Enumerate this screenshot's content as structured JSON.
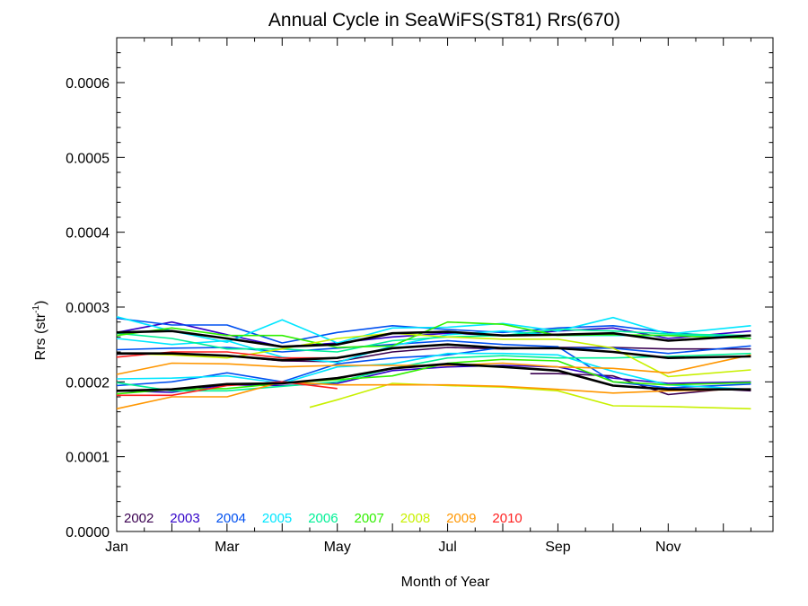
{
  "chart_data": {
    "type": "line",
    "title": "Annual Cycle in SeaWiFS(ST81) Rrs(670)",
    "xlabel": "Month of Year",
    "ylabel_main": "Rrs (str",
    "ylabel_sup": "-1",
    "ylabel_close": ")",
    "xlim": [
      1,
      12.9
    ],
    "ylim": [
      0,
      0.00066
    ],
    "x_ticks": [
      {
        "value": 1,
        "label": "Jan"
      },
      {
        "value": 3,
        "label": "Mar"
      },
      {
        "value": 5,
        "label": "May"
      },
      {
        "value": 7,
        "label": "Jul"
      },
      {
        "value": 9,
        "label": "Sep"
      },
      {
        "value": 11,
        "label": "Nov"
      }
    ],
    "y_ticks": [
      {
        "value": 0.0,
        "label": "0.0000"
      },
      {
        "value": 0.0001,
        "label": "0.0001"
      },
      {
        "value": 0.0002,
        "label": "0.0002"
      },
      {
        "value": 0.0003,
        "label": "0.0003"
      },
      {
        "value": 0.0004,
        "label": "0.0004"
      },
      {
        "value": 0.0005,
        "label": "0.0005"
      },
      {
        "value": 0.0006,
        "label": "0.0006"
      }
    ],
    "legend_position": "bottom-left, inside plot",
    "series": [
      {
        "name": "2002",
        "color": "#3a0050",
        "lines": [
          {
            "x": [
              1,
              2,
              3,
              4,
              5,
              6,
              7,
              8,
              9,
              10,
              11,
              12.5
            ],
            "y": [
              0.000237,
              0.000238,
              0.000235,
              0.000228,
              0.000227,
              0.00024,
              0.000246,
              0.000244,
              0.000246,
              0.000246,
              0.000244,
              0.000244
            ]
          },
          {
            "x": [
              8.5,
              9,
              10,
              11,
              12,
              12.5
            ],
            "y": [
              0.000211,
              0.000211,
              0.000208,
              0.000183,
              0.00019,
              0.000188
            ]
          }
        ]
      },
      {
        "name": "2003",
        "color": "#3000c8",
        "lines": [
          {
            "x": [
              1,
              2,
              3,
              4,
              5,
              6,
              7,
              8,
              9,
              10,
              11,
              12.5
            ],
            "y": [
              0.000266,
              0.00028,
              0.000263,
              0.000247,
              0.000252,
              0.00026,
              0.000265,
              0.000262,
              0.000268,
              0.000272,
              0.000258,
              0.000268
            ]
          },
          {
            "x": [
              1,
              2,
              3,
              4,
              5,
              6,
              7,
              8,
              9,
              10,
              11,
              12.5
            ],
            "y": [
              0.000188,
              0.000186,
              0.000196,
              0.000195,
              0.000198,
              0.000215,
              0.00022,
              0.000222,
              0.00022,
              0.000205,
              0.000198,
              0.0002
            ]
          }
        ]
      },
      {
        "name": "2004",
        "color": "#0050f0",
        "lines": [
          {
            "x": [
              1,
              2,
              3,
              4,
              5,
              6,
              7,
              8,
              9,
              10,
              11,
              12.5
            ],
            "y": [
              0.000285,
              0.000276,
              0.000276,
              0.000252,
              0.000266,
              0.000275,
              0.00027,
              0.000266,
              0.000272,
              0.000275,
              0.000266,
              0.000258
            ]
          },
          {
            "x": [
              1,
              2,
              3,
              4,
              5,
              6,
              7,
              8,
              9,
              10,
              11,
              12.5
            ],
            "y": [
              0.000195,
              0.0002,
              0.000212,
              0.0002,
              0.000224,
              0.000232,
              0.000236,
              0.000246,
              0.000245,
              0.000245,
              0.000238,
              0.000248
            ]
          },
          {
            "x": [
              1,
              2,
              3,
              4,
              5,
              6,
              7,
              8,
              9,
              10,
              11,
              12.5
            ],
            "y": [
              0.000243,
              0.000245,
              0.000246,
              0.00024,
              0.000245,
              0.00025,
              0.000255,
              0.00025,
              0.000247,
              0.0002,
              0.000192,
              0.000197
            ]
          }
        ]
      },
      {
        "name": "2005",
        "color": "#00e6ff",
        "lines": [
          {
            "x": [
              1,
              2,
              3,
              4,
              5,
              6,
              7,
              8,
              9,
              10,
              11,
              12.5
            ],
            "y": [
              0.000287,
              0.000268,
              0.000253,
              0.000283,
              0.000252,
              0.000272,
              0.000273,
              0.000278,
              0.000268,
              0.000286,
              0.000264,
              0.000275
            ]
          },
          {
            "x": [
              1,
              2,
              3,
              4,
              5,
              6,
              7,
              8,
              9,
              10,
              11,
              12.5
            ],
            "y": [
              0.000258,
              0.00025,
              0.000255,
              0.000233,
              0.000226,
              0.000248,
              0.000263,
              0.000268,
              0.000262,
              0.000262,
              0.000262,
              0.000262
            ]
          },
          {
            "x": [
              1,
              2,
              3,
              4,
              5,
              6,
              7,
              8,
              9,
              10,
              11,
              12.5
            ],
            "y": [
              0.000204,
              0.000205,
              0.000208,
              0.000198,
              0.00022,
              0.000224,
              0.000238,
              0.000238,
              0.000236,
              0.000214,
              0.000196,
              0.00019
            ]
          }
        ]
      },
      {
        "name": "2006",
        "color": "#00f096",
        "lines": [
          {
            "x": [
              1,
              2,
              3,
              4,
              5,
              6,
              7,
              8,
              9,
              10,
              11,
              12.5
            ],
            "y": [
              0.000199,
              0.000188,
              0.000188,
              0.000194,
              0.0002,
              0.000218,
              0.000232,
              0.000235,
              0.000232,
              0.000232,
              0.000234,
              0.000238
            ]
          },
          {
            "x": [
              1,
              2,
              3,
              4,
              5,
              6,
              7,
              8,
              9,
              10,
              11,
              12.5
            ],
            "y": [
              0.000265,
              0.000258,
              0.000244,
              0.000244,
              0.00024,
              0.000255,
              0.00026,
              0.000262,
              0.00027,
              0.000268,
              0.000264,
              0.000262
            ]
          }
        ]
      },
      {
        "name": "2007",
        "color": "#30f000",
        "lines": [
          {
            "x": [
              1,
              2,
              3,
              4,
              5,
              6,
              7,
              8,
              9,
              10,
              11,
              12.5
            ],
            "y": [
              0.000262,
              0.000272,
              0.000262,
              0.000262,
              0.000246,
              0.000248,
              0.00028,
              0.000277,
              0.000262,
              0.000263,
              0.000262,
              0.000258
            ]
          },
          {
            "x": [
              1,
              2,
              3,
              4,
              5,
              6,
              7,
              8,
              9,
              10,
              11,
              12.5
            ],
            "y": [
              0.000184,
              0.00019,
              0.000191,
              0.000198,
              0.000203,
              0.000208,
              0.000225,
              0.00023,
              0.000228,
              0.0002,
              0.000196,
              0.000199
            ]
          }
        ]
      },
      {
        "name": "2008",
        "color": "#c8f000",
        "lines": [
          {
            "x": [
              4.5,
              5,
              6,
              7,
              8,
              9,
              10,
              11,
              12.5
            ],
            "y": [
              0.000166,
              0.000176,
              0.000198,
              0.000195,
              0.000193,
              0.000188,
              0.000168,
              0.000167,
              0.000164
            ]
          },
          {
            "x": [
              1,
              2,
              3,
              4,
              5,
              6,
              7,
              8,
              9,
              10,
              11,
              12.5
            ],
            "y": [
              0.000238,
              0.000236,
              0.000232,
              0.000244,
              0.000258,
              0.000265,
              0.00026,
              0.000257,
              0.000257,
              0.000245,
              0.000207,
              0.000216
            ]
          }
        ]
      },
      {
        "name": "2009",
        "color": "#ff9600",
        "lines": [
          {
            "x": [
              1,
              2,
              3,
              4,
              5,
              6,
              7,
              8,
              9,
              10,
              11,
              12.5
            ],
            "y": [
              0.000164,
              0.00018,
              0.00018,
              0.0002,
              0.000196,
              0.000196,
              0.000196,
              0.000194,
              0.00019,
              0.000185,
              0.000188,
              0.00019
            ]
          },
          {
            "x": [
              1,
              2,
              3,
              4,
              5,
              6,
              7,
              8,
              9,
              10,
              11,
              12.5
            ],
            "y": [
              0.00021,
              0.000225,
              0.000224,
              0.00022,
              0.000222,
              0.000222,
              0.000222,
              0.000225,
              0.00022,
              0.000218,
              0.000212,
              0.000236
            ]
          }
        ]
      },
      {
        "name": "2010",
        "color": "#ff1e1e",
        "lines": [
          {
            "x": [
              1,
              2,
              3,
              4,
              5
            ],
            "y": [
              0.000233,
              0.00024,
              0.00024,
              0.000232,
              0.000232
            ]
          },
          {
            "x": [
              1,
              2,
              3,
              4,
              5
            ],
            "y": [
              0.000182,
              0.000182,
              0.000195,
              0.0002,
              0.000191
            ]
          }
        ]
      }
    ],
    "mean_lines": {
      "color": "#000000",
      "lines": [
        {
          "x": [
            1,
            2,
            3,
            4,
            5,
            6,
            7,
            8,
            9,
            10,
            11,
            12.5
          ],
          "y": [
            0.000266,
            0.000268,
            0.000258,
            0.000247,
            0.00025,
            0.000265,
            0.000267,
            0.000262,
            0.000263,
            0.000265,
            0.000255,
            0.000262
          ]
        },
        {
          "x": [
            1,
            2,
            3,
            4,
            5,
            6,
            7,
            8,
            9,
            10,
            11,
            12.5
          ],
          "y": [
            0.000238,
            0.000238,
            0.000235,
            0.000229,
            0.000232,
            0.000245,
            0.00025,
            0.000245,
            0.000245,
            0.00024,
            0.000232,
            0.000234
          ]
        },
        {
          "x": [
            1,
            2,
            3,
            4,
            5,
            6,
            7,
            8,
            9,
            10,
            11,
            12.5
          ],
          "y": [
            0.000188,
            0.00019,
            0.000197,
            0.000198,
            0.000205,
            0.000218,
            0.000224,
            0.00022,
            0.000215,
            0.000195,
            0.00019,
            0.00019
          ]
        }
      ]
    }
  }
}
